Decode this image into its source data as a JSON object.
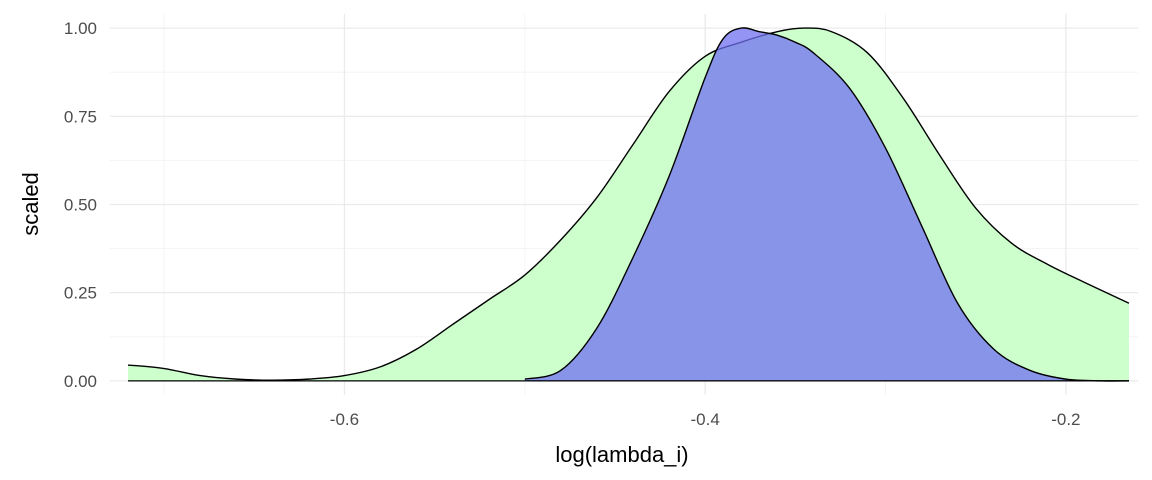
{
  "chart_data": {
    "type": "area",
    "xlabel": "log(lambda_i)",
    "ylabel": "scaled",
    "xlim": [
      -0.73,
      -0.16
    ],
    "ylim": [
      -0.04,
      1.04
    ],
    "x_ticks": [
      -0.6,
      -0.4,
      -0.2
    ],
    "x_tick_labels": [
      "-0.6",
      "-0.4",
      "-0.2"
    ],
    "y_ticks": [
      0,
      0.25,
      0.5,
      0.75,
      1
    ],
    "y_tick_labels": [
      "0.00",
      "0.25",
      "0.50",
      "0.75",
      "1.00"
    ],
    "grid": true,
    "legend": "none",
    "series": [
      {
        "fill": "#ccffcc",
        "x": [
          -0.72,
          -0.7,
          -0.68,
          -0.66,
          -0.64,
          -0.62,
          -0.6,
          -0.58,
          -0.56,
          -0.54,
          -0.52,
          -0.5,
          -0.48,
          -0.46,
          -0.44,
          -0.42,
          -0.4,
          -0.38,
          -0.36,
          -0.345,
          -0.33,
          -0.31,
          -0.29,
          -0.27,
          -0.25,
          -0.23,
          -0.21,
          -0.19,
          -0.165
        ],
        "values": [
          0.045,
          0.035,
          0.015,
          0.005,
          0.002,
          0.005,
          0.015,
          0.04,
          0.09,
          0.16,
          0.23,
          0.3,
          0.4,
          0.52,
          0.67,
          0.82,
          0.92,
          0.96,
          0.99,
          1.0,
          0.99,
          0.93,
          0.8,
          0.64,
          0.49,
          0.39,
          0.33,
          0.28,
          0.22
        ]
      },
      {
        "fill": "#7070f0",
        "x": [
          -0.5,
          -0.48,
          -0.46,
          -0.44,
          -0.42,
          -0.4,
          -0.39,
          -0.38,
          -0.37,
          -0.36,
          -0.35,
          -0.34,
          -0.32,
          -0.3,
          -0.28,
          -0.26,
          -0.24,
          -0.22,
          -0.2,
          -0.18,
          -0.165
        ],
        "values": [
          0.005,
          0.03,
          0.15,
          0.35,
          0.58,
          0.86,
          0.97,
          1.0,
          0.99,
          0.98,
          0.96,
          0.93,
          0.83,
          0.66,
          0.44,
          0.22,
          0.09,
          0.03,
          0.005,
          0.0,
          0.0
        ]
      }
    ]
  }
}
